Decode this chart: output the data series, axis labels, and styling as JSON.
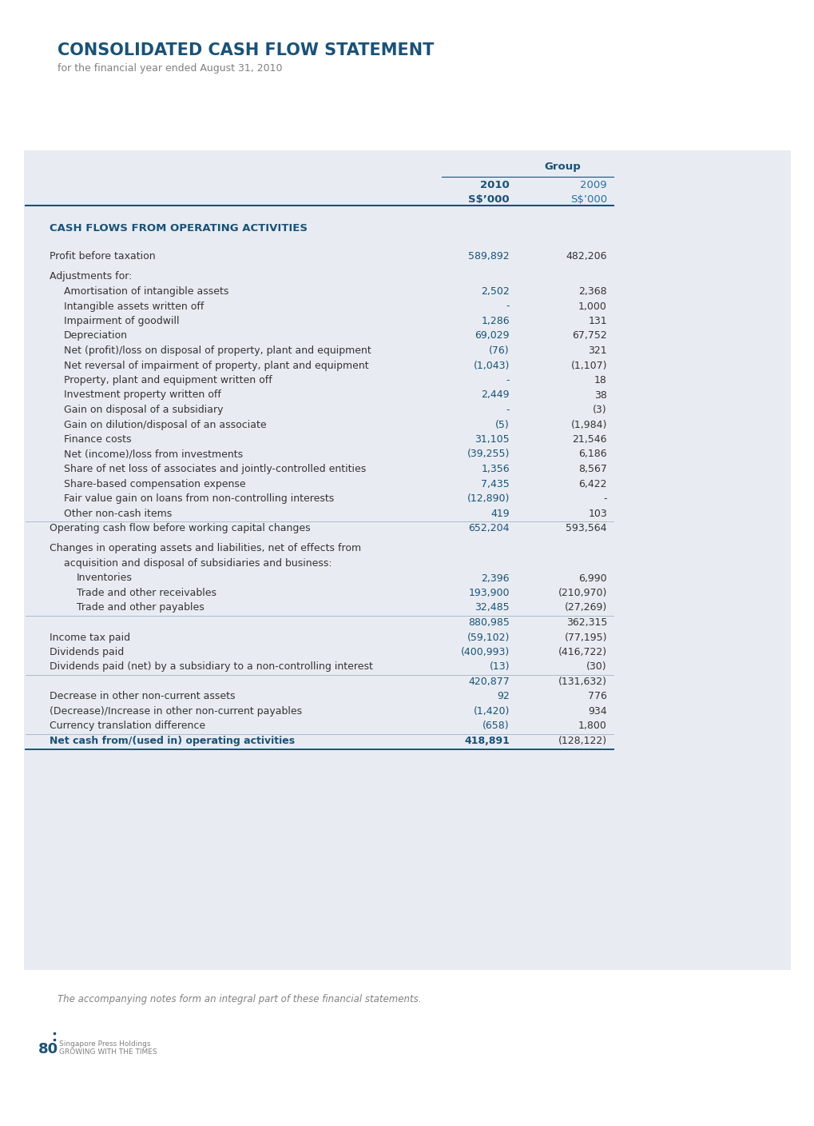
{
  "title": "CONSOLIDATED CASH FLOW STATEMENT",
  "subtitle": "for the financial year ended August 31, 2010",
  "bg_color": "#e8ecf2",
  "white_bg": "#ffffff",
  "blue_dark": "#1a5276",
  "blue_mid": "#2471a3",
  "gray_text": "#808080",
  "black_text": "#333333",
  "header_group": "Group",
  "col1_header": "2010",
  "col2_header": "2009",
  "col1_sub": "S$’000",
  "col2_sub": "S$’000",
  "section1_title": "CASH FLOWS FROM OPERATING ACTIVITIES",
  "rows": [
    {
      "label": "Profit before taxation",
      "v2010": "589,892",
      "v2009": "482,206",
      "indent": 0,
      "bold": false,
      "blue2010": true,
      "blue2009": false,
      "spacer_before": true,
      "spacer_after": true
    },
    {
      "label": "Adjustments for:",
      "v2010": "",
      "v2009": "",
      "indent": 0,
      "bold": false,
      "blue2010": false,
      "blue2009": false,
      "spacer_before": false,
      "spacer_after": false
    },
    {
      "label": "Amortisation of intangible assets",
      "v2010": "2,502",
      "v2009": "2,368",
      "indent": 1,
      "bold": false,
      "blue2010": true,
      "blue2009": false,
      "spacer_before": false,
      "spacer_after": false
    },
    {
      "label": "Intangible assets written off",
      "v2010": "-",
      "v2009": "1,000",
      "indent": 1,
      "bold": false,
      "blue2010": true,
      "blue2009": false,
      "spacer_before": false,
      "spacer_after": false
    },
    {
      "label": "Impairment of goodwill",
      "v2010": "1,286",
      "v2009": "131",
      "indent": 1,
      "bold": false,
      "blue2010": true,
      "blue2009": false,
      "spacer_before": false,
      "spacer_after": false
    },
    {
      "label": "Depreciation",
      "v2010": "69,029",
      "v2009": "67,752",
      "indent": 1,
      "bold": false,
      "blue2010": true,
      "blue2009": false,
      "spacer_before": false,
      "spacer_after": false
    },
    {
      "label": "Net (profit)/loss on disposal of property, plant and equipment",
      "v2010": "(76)",
      "v2009": "321",
      "indent": 1,
      "bold": false,
      "blue2010": true,
      "blue2009": false,
      "spacer_before": false,
      "spacer_after": false
    },
    {
      "label": "Net reversal of impairment of property, plant and equipment",
      "v2010": "(1,043)",
      "v2009": "(1,107)",
      "indent": 1,
      "bold": false,
      "blue2010": true,
      "blue2009": false,
      "spacer_before": false,
      "spacer_after": false
    },
    {
      "label": "Property, plant and equipment written off",
      "v2010": "-",
      "v2009": "18",
      "indent": 1,
      "bold": false,
      "blue2010": true,
      "blue2009": false,
      "spacer_before": false,
      "spacer_after": false
    },
    {
      "label": "Investment property written off",
      "v2010": "2,449",
      "v2009": "38",
      "indent": 1,
      "bold": false,
      "blue2010": true,
      "blue2009": false,
      "spacer_before": false,
      "spacer_after": false
    },
    {
      "label": "Gain on disposal of a subsidiary",
      "v2010": "-",
      "v2009": "(3)",
      "indent": 1,
      "bold": false,
      "blue2010": true,
      "blue2009": false,
      "spacer_before": false,
      "spacer_after": false
    },
    {
      "label": "Gain on dilution/disposal of an associate",
      "v2010": "(5)",
      "v2009": "(1,984)",
      "indent": 1,
      "bold": false,
      "blue2010": true,
      "blue2009": false,
      "spacer_before": false,
      "spacer_after": false
    },
    {
      "label": "Finance costs",
      "v2010": "31,105",
      "v2009": "21,546",
      "indent": 1,
      "bold": false,
      "blue2010": true,
      "blue2009": false,
      "spacer_before": false,
      "spacer_after": false
    },
    {
      "label": "Net (income)/loss from investments",
      "v2010": "(39,255)",
      "v2009": "6,186",
      "indent": 1,
      "bold": false,
      "blue2010": true,
      "blue2009": false,
      "spacer_before": false,
      "spacer_after": false
    },
    {
      "label": "Share of net loss of associates and jointly-controlled entities",
      "v2010": "1,356",
      "v2009": "8,567",
      "indent": 1,
      "bold": false,
      "blue2010": true,
      "blue2009": false,
      "spacer_before": false,
      "spacer_after": false
    },
    {
      "label": "Share-based compensation expense",
      "v2010": "7,435",
      "v2009": "6,422",
      "indent": 1,
      "bold": false,
      "blue2010": true,
      "blue2009": false,
      "spacer_before": false,
      "spacer_after": false
    },
    {
      "label": "Fair value gain on loans from non-controlling interests",
      "v2010": "(12,890)",
      "v2009": "-",
      "indent": 1,
      "bold": false,
      "blue2010": true,
      "blue2009": false,
      "spacer_before": false,
      "spacer_after": false
    },
    {
      "label": "Other non-cash items",
      "v2010": "419",
      "v2009": "103",
      "indent": 1,
      "bold": false,
      "blue2010": true,
      "blue2009": false,
      "line_below": true,
      "spacer_before": false,
      "spacer_after": false
    },
    {
      "label": "Operating cash flow before working capital changes",
      "v2010": "652,204",
      "v2009": "593,564",
      "indent": 0,
      "bold": false,
      "blue2010": true,
      "blue2009": false,
      "spacer_before": false,
      "spacer_after": true
    },
    {
      "label": "Changes in operating assets and liabilities, net of effects from",
      "v2010": "",
      "v2009": "",
      "indent": 0,
      "bold": false,
      "blue2010": false,
      "blue2009": false,
      "spacer_before": false,
      "spacer_after": false
    },
    {
      "label": "acquisition and disposal of subsidiaries and business:",
      "v2010": "",
      "v2009": "",
      "indent": 1,
      "bold": false,
      "blue2010": false,
      "blue2009": false,
      "spacer_before": false,
      "spacer_after": false
    },
    {
      "label": "Inventories",
      "v2010": "2,396",
      "v2009": "6,990",
      "indent": 2,
      "bold": false,
      "blue2010": true,
      "blue2009": false,
      "spacer_before": false,
      "spacer_after": false
    },
    {
      "label": "Trade and other receivables",
      "v2010": "193,900",
      "v2009": "(210,970)",
      "indent": 2,
      "bold": false,
      "blue2010": true,
      "blue2009": false,
      "spacer_before": false,
      "spacer_after": false
    },
    {
      "label": "Trade and other payables",
      "v2010": "32,485",
      "v2009": "(27,269)",
      "indent": 2,
      "bold": false,
      "blue2010": true,
      "blue2009": false,
      "line_below": true,
      "spacer_before": false,
      "spacer_after": false
    },
    {
      "label": "",
      "v2010": "880,985",
      "v2009": "362,315",
      "indent": 0,
      "bold": false,
      "blue2010": true,
      "blue2009": false,
      "spacer_before": false,
      "spacer_after": false
    },
    {
      "label": "Income tax paid",
      "v2010": "(59,102)",
      "v2009": "(77,195)",
      "indent": 0,
      "bold": false,
      "blue2010": true,
      "blue2009": false,
      "spacer_before": false,
      "spacer_after": false
    },
    {
      "label": "Dividends paid",
      "v2010": "(400,993)",
      "v2009": "(416,722)",
      "indent": 0,
      "bold": false,
      "blue2010": true,
      "blue2009": false,
      "spacer_before": false,
      "spacer_after": false
    },
    {
      "label": "Dividends paid (net) by a subsidiary to a non-controlling interest",
      "v2010": "(13)",
      "v2009": "(30)",
      "indent": 0,
      "bold": false,
      "blue2010": true,
      "blue2009": false,
      "line_below": true,
      "spacer_before": false,
      "spacer_after": false
    },
    {
      "label": "",
      "v2010": "420,877",
      "v2009": "(131,632)",
      "indent": 0,
      "bold": false,
      "blue2010": true,
      "blue2009": false,
      "spacer_before": false,
      "spacer_after": false
    },
    {
      "label": "Decrease in other non-current assets",
      "v2010": "92",
      "v2009": "776",
      "indent": 0,
      "bold": false,
      "blue2010": true,
      "blue2009": false,
      "spacer_before": false,
      "spacer_after": false
    },
    {
      "label": "(Decrease)/Increase in other non-current payables",
      "v2010": "(1,420)",
      "v2009": "934",
      "indent": 0,
      "bold": false,
      "blue2010": true,
      "blue2009": false,
      "spacer_before": false,
      "spacer_after": false
    },
    {
      "label": "Currency translation difference",
      "v2010": "(658)",
      "v2009": "1,800",
      "indent": 0,
      "bold": false,
      "blue2010": true,
      "blue2009": false,
      "line_below": true,
      "spacer_before": false,
      "spacer_after": false
    },
    {
      "label": "Net cash from/(used in) operating activities",
      "v2010": "418,891",
      "v2009": "(128,122)",
      "indent": 0,
      "bold": true,
      "blue2010": true,
      "blue2009": false,
      "section_end": true,
      "spacer_before": false,
      "spacer_after": false
    }
  ],
  "footer_note": "The accompanying notes form an integral part of these financial statements.",
  "footer_page": "80",
  "footer_company": "Singapore Press Holdings",
  "footer_slogan": "GROWING WITH THE TIMES"
}
